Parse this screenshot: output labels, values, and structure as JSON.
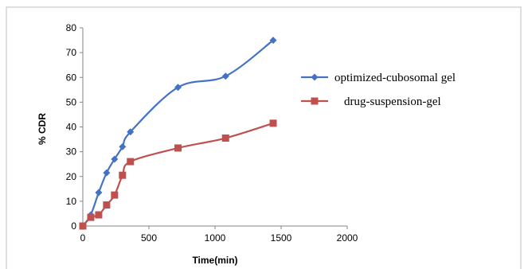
{
  "chart_data": {
    "type": "line",
    "title": "",
    "xlabel": "Time(min)",
    "ylabel": "% CDR",
    "xlim": [
      0,
      2000
    ],
    "ylim": [
      0,
      80
    ],
    "xticks": [
      0,
      500,
      1000,
      1500,
      2000
    ],
    "yticks": [
      0,
      10,
      20,
      30,
      40,
      50,
      60,
      70,
      80
    ],
    "grid": false,
    "legend_position": "right",
    "series": [
      {
        "name": "optimized-cubosomal gel",
        "color": "#4472C4",
        "marker": "diamond",
        "x": [
          0,
          60,
          120,
          180,
          240,
          300,
          360,
          720,
          1080,
          1440
        ],
        "y": [
          0,
          4.5,
          13.5,
          21.5,
          27,
          32,
          38,
          56,
          60.5,
          75
        ]
      },
      {
        "name": "drug-suspension-gel",
        "color": "#C0504D",
        "marker": "square",
        "x": [
          0,
          60,
          120,
          180,
          240,
          300,
          360,
          720,
          1080,
          1440
        ],
        "y": [
          0,
          3.5,
          4.5,
          8.5,
          12.5,
          20.5,
          26,
          31.5,
          35.5,
          41.5
        ]
      }
    ]
  }
}
